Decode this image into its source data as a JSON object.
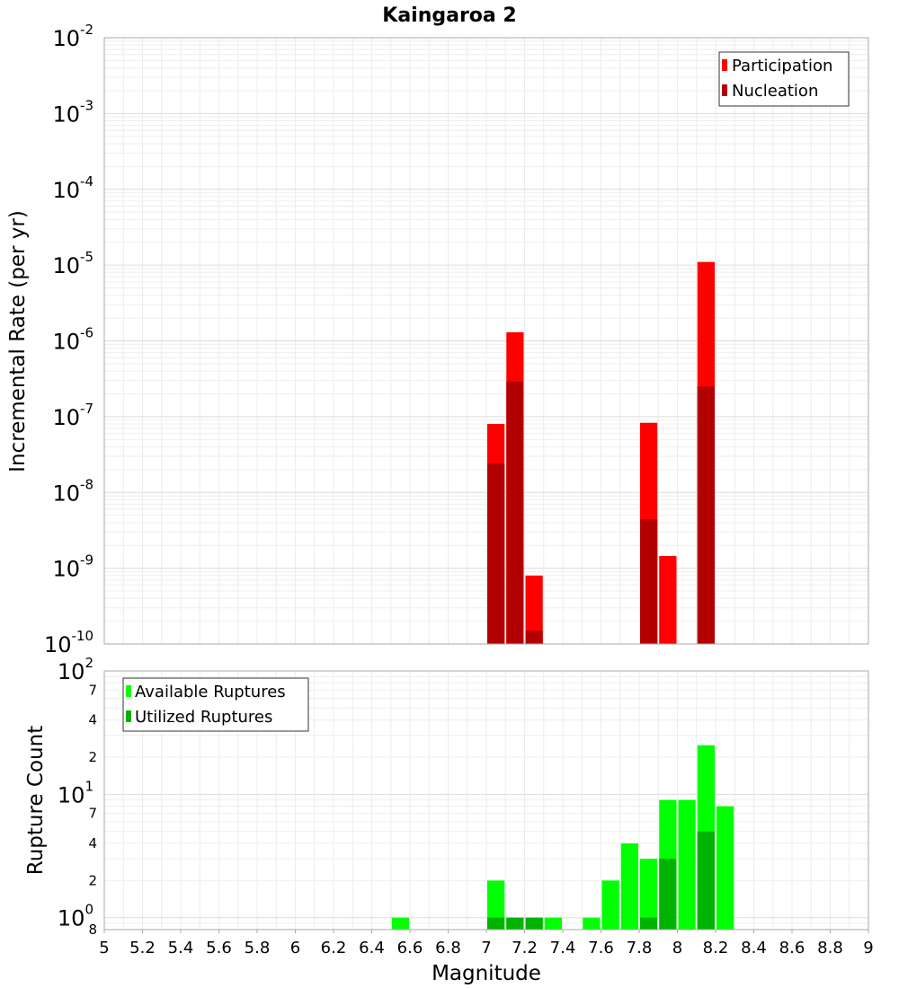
{
  "chart_data": [
    {
      "type": "bar",
      "title": "Kaingaroa 2",
      "ylabel": "Incremental Rate (per yr)",
      "y_scale": "log",
      "ylim": [
        1e-10,
        0.01
      ],
      "xlim": [
        5,
        9
      ],
      "bin_width": 0.1,
      "legend_position": "top-right",
      "y_major_ticks": [
        {
          "base": "10",
          "exp": "-10",
          "value": 1e-10
        },
        {
          "base": "10",
          "exp": "-9",
          "value": 1e-09
        },
        {
          "base": "10",
          "exp": "-8",
          "value": 1e-08
        },
        {
          "base": "10",
          "exp": "-7",
          "value": 1e-07
        },
        {
          "base": "10",
          "exp": "-6",
          "value": 1e-06
        },
        {
          "base": "10",
          "exp": "-5",
          "value": 1e-05
        },
        {
          "base": "10",
          "exp": "-4",
          "value": 0.0001
        },
        {
          "base": "10",
          "exp": "-3",
          "value": 0.001
        },
        {
          "base": "10",
          "exp": "-2",
          "value": 0.01
        }
      ],
      "series": [
        {
          "name": "Participation",
          "color": "#ff0000",
          "points": [
            {
              "x": 7.05,
              "y": 8e-08
            },
            {
              "x": 7.15,
              "y": 1.3e-06
            },
            {
              "x": 7.25,
              "y": 8e-10
            },
            {
              "x": 7.85,
              "y": 8.3e-08
            },
            {
              "x": 7.95,
              "y": 1.45e-09
            },
            {
              "x": 8.15,
              "y": 1.1e-05
            }
          ]
        },
        {
          "name": "Nucleation",
          "color": "#b30000",
          "points": [
            {
              "x": 7.05,
              "y": 2.4e-08
            },
            {
              "x": 7.15,
              "y": 2.9e-07
            },
            {
              "x": 7.25,
              "y": 1.5e-10
            },
            {
              "x": 7.85,
              "y": 4.4e-09
            },
            {
              "x": 8.15,
              "y": 2.5e-07
            }
          ]
        }
      ]
    },
    {
      "type": "bar",
      "ylabel": "Rupture Count",
      "xlabel": "Magnitude",
      "y_scale": "log",
      "ylim": [
        0.8,
        100
      ],
      "xlim": [
        5,
        9
      ],
      "bin_width": 0.1,
      "legend_position": "top-left",
      "x_ticks": [
        "5",
        "5.2",
        "5.4",
        "5.6",
        "5.8",
        "6",
        "6.2",
        "6.4",
        "6.6",
        "6.8",
        "7",
        "7.2",
        "7.4",
        "7.6",
        "7.8",
        "8",
        "8.2",
        "8.4",
        "8.6",
        "8.8",
        "9"
      ],
      "y_major_ticks": [
        {
          "base": "10",
          "exp": "0",
          "value": 1
        },
        {
          "base": "10",
          "exp": "1",
          "value": 10
        },
        {
          "base": "10",
          "exp": "2",
          "value": 100
        }
      ],
      "y_minor_ticks": [
        {
          "label": "8",
          "value": 0.8
        },
        {
          "label": "2",
          "value": 2
        },
        {
          "label": "4",
          "value": 4
        },
        {
          "label": "7",
          "value": 7
        },
        {
          "label": "2",
          "value": 20
        },
        {
          "label": "4",
          "value": 40
        },
        {
          "label": "7",
          "value": 70
        }
      ],
      "series": [
        {
          "name": "Available Ruptures",
          "color": "#00ff00",
          "points": [
            {
              "x": 6.55,
              "y": 1
            },
            {
              "x": 7.05,
              "y": 2
            },
            {
              "x": 7.15,
              "y": 1
            },
            {
              "x": 7.25,
              "y": 1
            },
            {
              "x": 7.35,
              "y": 1
            },
            {
              "x": 7.55,
              "y": 1
            },
            {
              "x": 7.65,
              "y": 2
            },
            {
              "x": 7.75,
              "y": 4
            },
            {
              "x": 7.85,
              "y": 3
            },
            {
              "x": 7.95,
              "y": 9
            },
            {
              "x": 8.05,
              "y": 9
            },
            {
              "x": 8.15,
              "y": 25
            },
            {
              "x": 8.25,
              "y": 8
            }
          ]
        },
        {
          "name": "Utilized Ruptures",
          "color": "#00b300",
          "points": [
            {
              "x": 7.05,
              "y": 1
            },
            {
              "x": 7.15,
              "y": 1
            },
            {
              "x": 7.25,
              "y": 1
            },
            {
              "x": 7.85,
              "y": 1
            },
            {
              "x": 7.95,
              "y": 3
            },
            {
              "x": 8.15,
              "y": 5
            }
          ]
        }
      ]
    }
  ]
}
